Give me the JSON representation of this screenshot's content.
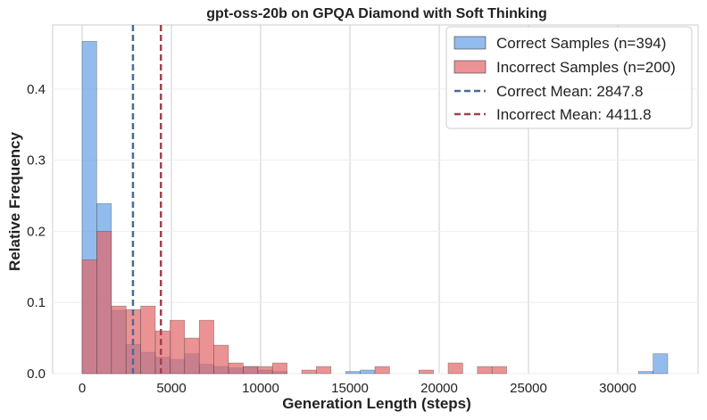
{
  "chart_data": {
    "type": "histogram",
    "title": "gpt-oss-20b on GPQA Diamond with Soft Thinking",
    "xlabel": "Generation Length (steps)",
    "ylabel": "Relative Frequency",
    "xlim": [
      -1650,
      34500
    ],
    "ylim": [
      0,
      0.49
    ],
    "xticks": [
      0,
      5000,
      10000,
      15000,
      20000,
      25000,
      30000
    ],
    "yticks": [
      0.0,
      0.1,
      0.2,
      0.3,
      0.4
    ],
    "xtick_labels": [
      "0",
      "5000",
      "10000",
      "15000",
      "20000",
      "25000",
      "30000"
    ],
    "ytick_labels": [
      "0.0",
      "0.1",
      "0.2",
      "0.3",
      "0.4"
    ],
    "grid": true,
    "legend_position": "top-right",
    "bin_edges": [
      0,
      820,
      1640,
      2460,
      3280,
      4100,
      4920,
      5740,
      6560,
      7380,
      8200,
      9020,
      9840,
      10660,
      11480,
      12300,
      13120,
      13940,
      14760,
      15580,
      16400,
      17220,
      18040,
      18860,
      19680,
      20500,
      21320,
      22140,
      22960,
      23780,
      24600,
      25420,
      26240,
      27060,
      27880,
      28700,
      29520,
      30340,
      31160,
      31980,
      32800
    ],
    "series": [
      {
        "name": "Correct Samples (n=394)",
        "color": "#4a90e2",
        "values": [
          0.467,
          0.239,
          0.089,
          0.041,
          0.03,
          0.023,
          0.02,
          0.028,
          0.013,
          0.01,
          0.008,
          0.01,
          0.005,
          0.003,
          0.0,
          0.0,
          0.0,
          0.0,
          0.003,
          0.005,
          0.0,
          0.0,
          0.0,
          0.0,
          0.0,
          0.0,
          0.0,
          0.0,
          0.0,
          0.0,
          0.0,
          0.0,
          0.0,
          0.0,
          0.0,
          0.0,
          0.0,
          0.0,
          0.003,
          0.028
        ]
      },
      {
        "name": "Incorrect Samples (n=200)",
        "color": "#e36566",
        "values": [
          0.16,
          0.2,
          0.095,
          0.09,
          0.095,
          0.06,
          0.075,
          0.05,
          0.075,
          0.04,
          0.015,
          0.01,
          0.01,
          0.015,
          0.0,
          0.005,
          0.01,
          0.0,
          0.0,
          0.0,
          0.01,
          0.0,
          0.0,
          0.005,
          0.0,
          0.015,
          0.0,
          0.01,
          0.01,
          0.0,
          0.0,
          0.0,
          0.0,
          0.0,
          0.0,
          0.0,
          0.0,
          0.0,
          0.0,
          0.0
        ]
      }
    ],
    "mean_lines": [
      {
        "name": "Correct Mean: 2847.8",
        "value": 2847.8,
        "color": "#4a6b94"
      },
      {
        "name": "Incorrect Mean: 4411.8",
        "value": 4411.8,
        "color": "#a0434c"
      }
    ]
  }
}
